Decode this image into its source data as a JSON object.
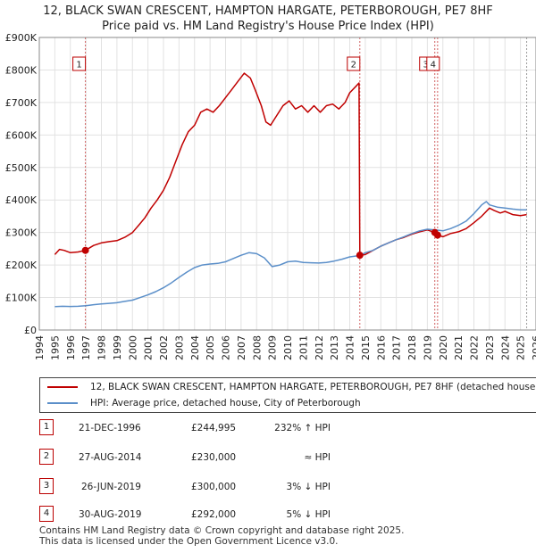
{
  "title_line1": "12, BLACK SWAN CRESCENT, HAMPTON HARGATE, PETERBOROUGH, PE7 8HF",
  "title_line2": "Price paid vs. HM Land Registry's House Price Index (HPI)",
  "colors": {
    "property": "#c00000",
    "hpi": "#5b8fc9",
    "marker_fill": "#c00000",
    "sale_line": "#d06060"
  },
  "chart_data": {
    "type": "line",
    "xlim": [
      1994,
      2026
    ],
    "ylim": [
      0,
      900000
    ],
    "y_ticks": [
      {
        "value": 0,
        "label": "£0"
      },
      {
        "value": 100000,
        "label": "£100K"
      },
      {
        "value": 200000,
        "label": "£200K"
      },
      {
        "value": 300000,
        "label": "£300K"
      },
      {
        "value": 400000,
        "label": "£400K"
      },
      {
        "value": 500000,
        "label": "£500K"
      },
      {
        "value": 600000,
        "label": "£600K"
      },
      {
        "value": 700000,
        "label": "£700K"
      },
      {
        "value": 800000,
        "label": "£800K"
      },
      {
        "value": 900000,
        "label": "£900K"
      }
    ],
    "x_ticks": [
      "1994",
      "1995",
      "1996",
      "1997",
      "1998",
      "1999",
      "2000",
      "2001",
      "2002",
      "2003",
      "2004",
      "2005",
      "2006",
      "2007",
      "2008",
      "2009",
      "2010",
      "2011",
      "2012",
      "2013",
      "2014",
      "2015",
      "2016",
      "2017",
      "2018",
      "2019",
      "2020",
      "2021",
      "2022",
      "2023",
      "2024",
      "2025",
      "2026"
    ],
    "series": [
      {
        "name": "12, BLACK SWAN CRESCENT, HAMPTON HARGATE, PETERBOROUGH, PE7 8HF (detached house)",
        "color": "#c00000",
        "points": [
          [
            1995.0,
            232000
          ],
          [
            1995.3,
            248000
          ],
          [
            1995.6,
            245000
          ],
          [
            1996.0,
            238000
          ],
          [
            1996.5,
            240000
          ],
          [
            1996.97,
            244995
          ],
          [
            1997.5,
            260000
          ],
          [
            1998.0,
            268000
          ],
          [
            1998.5,
            272000
          ],
          [
            1999.0,
            275000
          ],
          [
            1999.5,
            285000
          ],
          [
            2000.0,
            300000
          ],
          [
            2000.4,
            322000
          ],
          [
            2000.8,
            345000
          ],
          [
            2001.2,
            375000
          ],
          [
            2001.6,
            400000
          ],
          [
            2002.0,
            430000
          ],
          [
            2002.4,
            470000
          ],
          [
            2002.8,
            520000
          ],
          [
            2003.2,
            570000
          ],
          [
            2003.6,
            610000
          ],
          [
            2004.0,
            630000
          ],
          [
            2004.4,
            670000
          ],
          [
            2004.8,
            680000
          ],
          [
            2005.2,
            670000
          ],
          [
            2005.6,
            690000
          ],
          [
            2006.0,
            715000
          ],
          [
            2006.4,
            740000
          ],
          [
            2006.8,
            765000
          ],
          [
            2007.2,
            790000
          ],
          [
            2007.6,
            775000
          ],
          [
            2007.9,
            740000
          ],
          [
            2008.3,
            690000
          ],
          [
            2008.6,
            640000
          ],
          [
            2008.9,
            630000
          ],
          [
            2009.3,
            660000
          ],
          [
            2009.7,
            690000
          ],
          [
            2010.1,
            705000
          ],
          [
            2010.5,
            680000
          ],
          [
            2010.9,
            690000
          ],
          [
            2011.3,
            670000
          ],
          [
            2011.7,
            690000
          ],
          [
            2012.1,
            670000
          ],
          [
            2012.5,
            690000
          ],
          [
            2012.9,
            695000
          ],
          [
            2013.3,
            680000
          ],
          [
            2013.7,
            700000
          ],
          [
            2014.0,
            730000
          ],
          [
            2014.4,
            750000
          ],
          [
            2014.6,
            760000
          ],
          [
            2014.65,
            230000
          ],
          [
            2015.0,
            232000
          ],
          [
            2015.5,
            245000
          ],
          [
            2016.0,
            258000
          ],
          [
            2016.5,
            268000
          ],
          [
            2017.0,
            278000
          ],
          [
            2017.5,
            285000
          ],
          [
            2018.0,
            295000
          ],
          [
            2018.5,
            302000
          ],
          [
            2019.0,
            308000
          ],
          [
            2019.48,
            300000
          ],
          [
            2019.66,
            292000
          ],
          [
            2020.0,
            287000
          ],
          [
            2020.5,
            297000
          ],
          [
            2021.0,
            302000
          ],
          [
            2021.5,
            312000
          ],
          [
            2022.0,
            330000
          ],
          [
            2022.5,
            350000
          ],
          [
            2023.0,
            375000
          ],
          [
            2023.3,
            368000
          ],
          [
            2023.7,
            360000
          ],
          [
            2024.0,
            365000
          ],
          [
            2024.5,
            355000
          ],
          [
            2025.0,
            352000
          ],
          [
            2025.4,
            355000
          ]
        ]
      },
      {
        "name": "HPI: Average price, detached house, City of Peterborough",
        "color": "#5b8fc9",
        "points": [
          [
            1995.0,
            72000
          ],
          [
            1995.5,
            73000
          ],
          [
            1996.0,
            72500
          ],
          [
            1996.5,
            73000
          ],
          [
            1997.0,
            75000
          ],
          [
            1997.5,
            78000
          ],
          [
            1998.0,
            80000
          ],
          [
            1998.5,
            82000
          ],
          [
            1999.0,
            84000
          ],
          [
            1999.5,
            88000
          ],
          [
            2000.0,
            92000
          ],
          [
            2000.5,
            100000
          ],
          [
            2001.0,
            108000
          ],
          [
            2001.5,
            118000
          ],
          [
            2002.0,
            130000
          ],
          [
            2002.5,
            145000
          ],
          [
            2003.0,
            162000
          ],
          [
            2003.5,
            178000
          ],
          [
            2004.0,
            192000
          ],
          [
            2004.5,
            200000
          ],
          [
            2005.0,
            203000
          ],
          [
            2005.5,
            205000
          ],
          [
            2006.0,
            210000
          ],
          [
            2006.5,
            220000
          ],
          [
            2007.0,
            230000
          ],
          [
            2007.5,
            238000
          ],
          [
            2008.0,
            235000
          ],
          [
            2008.5,
            222000
          ],
          [
            2009.0,
            195000
          ],
          [
            2009.5,
            200000
          ],
          [
            2010.0,
            210000
          ],
          [
            2010.5,
            212000
          ],
          [
            2011.0,
            208000
          ],
          [
            2011.5,
            207000
          ],
          [
            2012.0,
            206000
          ],
          [
            2012.5,
            208000
          ],
          [
            2013.0,
            212000
          ],
          [
            2013.5,
            218000
          ],
          [
            2014.0,
            225000
          ],
          [
            2014.65,
            229000
          ],
          [
            2015.0,
            238000
          ],
          [
            2015.5,
            245000
          ],
          [
            2016.0,
            258000
          ],
          [
            2016.5,
            268000
          ],
          [
            2017.0,
            278000
          ],
          [
            2017.5,
            287000
          ],
          [
            2018.0,
            297000
          ],
          [
            2018.5,
            305000
          ],
          [
            2019.0,
            310000
          ],
          [
            2019.5,
            308000
          ],
          [
            2020.0,
            305000
          ],
          [
            2020.5,
            312000
          ],
          [
            2021.0,
            322000
          ],
          [
            2021.5,
            335000
          ],
          [
            2022.0,
            358000
          ],
          [
            2022.5,
            385000
          ],
          [
            2022.8,
            395000
          ],
          [
            2023.0,
            385000
          ],
          [
            2023.5,
            378000
          ],
          [
            2024.0,
            375000
          ],
          [
            2024.5,
            372000
          ],
          [
            2025.0,
            370000
          ],
          [
            2025.4,
            370000
          ]
        ]
      }
    ],
    "sale_markers": [
      {
        "label": "1",
        "x": 1996.97,
        "y": 244995
      },
      {
        "label": "2",
        "x": 2014.65,
        "y": 230000
      },
      {
        "label": "3",
        "x": 2019.48,
        "y": 300000
      },
      {
        "label": "4",
        "x": 2019.66,
        "y": 292000
      }
    ]
  },
  "legend": {
    "property_label": "12, BLACK SWAN CRESCENT, HAMPTON HARGATE, PETERBOROUGH, PE7 8HF (detached house)",
    "hpi_label": "HPI: Average price, detached house, City of Peterborough"
  },
  "sales": [
    {
      "num": "1",
      "date": "21-DEC-1996",
      "price": "£244,995",
      "hpi": "232% ↑ HPI"
    },
    {
      "num": "2",
      "date": "27-AUG-2014",
      "price": "£230,000",
      "hpi": "≈ HPI"
    },
    {
      "num": "3",
      "date": "26-JUN-2019",
      "price": "£300,000",
      "hpi": "3% ↓ HPI"
    },
    {
      "num": "4",
      "date": "30-AUG-2019",
      "price": "£292,000",
      "hpi": "5% ↓ HPI"
    }
  ],
  "footer_line1": "Contains HM Land Registry data © Crown copyright and database right 2025.",
  "footer_line2": "This data is licensed under the Open Government Licence v3.0."
}
